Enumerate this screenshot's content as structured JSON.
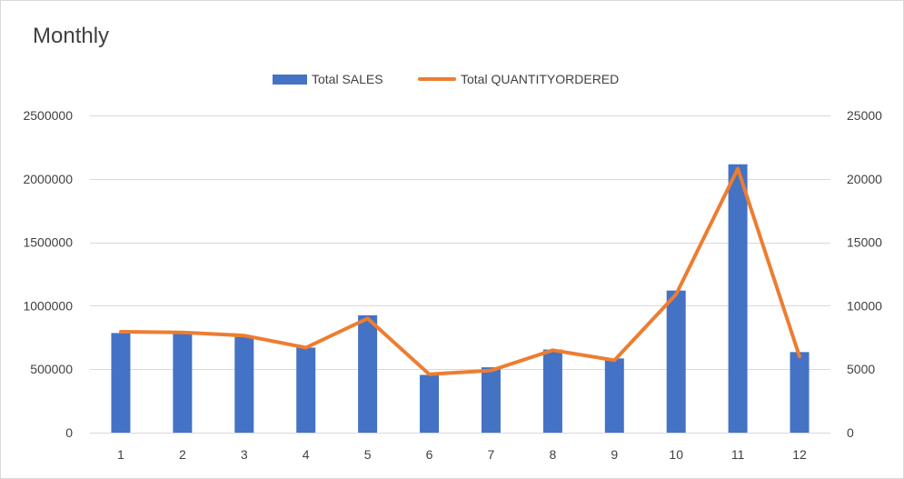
{
  "chart_data": {
    "type": "bar",
    "title": "Monthly",
    "categories": [
      "1",
      "2",
      "3",
      "4",
      "5",
      "6",
      "7",
      "8",
      "9",
      "10",
      "11",
      "12"
    ],
    "series": [
      {
        "name": "Total SALES",
        "type": "bar",
        "axis": "left",
        "color": "#4472c4",
        "values": [
          785000,
          795000,
          755000,
          670000,
          925000,
          455000,
          515000,
          655000,
          585000,
          1120000,
          2115000,
          635000
        ]
      },
      {
        "name": "Total QUANTITYORDERED",
        "type": "line",
        "axis": "right",
        "color": "#ed7d31",
        "values": [
          7950,
          7900,
          7650,
          6700,
          9000,
          4600,
          4900,
          6500,
          5700,
          10900,
          20800,
          6000
        ]
      }
    ],
    "y_left": {
      "min": 0,
      "max": 2500000,
      "ticks": [
        0,
        500000,
        1000000,
        1500000,
        2000000,
        2500000
      ]
    },
    "y_right": {
      "min": 0,
      "max": 25000,
      "ticks": [
        0,
        5000,
        10000,
        15000,
        20000,
        25000
      ]
    },
    "grid": true,
    "legend": "top-center"
  }
}
